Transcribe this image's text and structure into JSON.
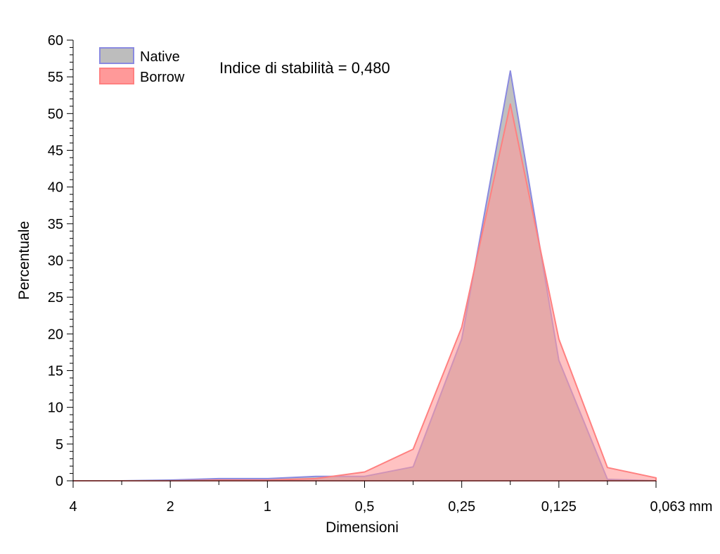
{
  "chart_data": {
    "type": "area",
    "xlabel": "Dimensioni",
    "ylabel": "Percentuale",
    "x_tick_labels": [
      "4",
      "2",
      "1",
      "0,5",
      "0,25",
      "0,125",
      "0,063 mm"
    ],
    "y_tick_labels": [
      "0",
      "5",
      "10",
      "15",
      "20",
      "25",
      "30",
      "35",
      "40",
      "45",
      "50",
      "55",
      "60"
    ],
    "ylim": [
      0,
      60
    ],
    "x_scale": "log2 (grain size, decreasing to the right)",
    "x_phi": [
      -2,
      -1.5,
      -1,
      -0.5,
      0,
      0.5,
      1,
      1.5,
      2,
      2.5,
      3,
      3.5,
      4
    ],
    "annotation": "Indice di stabilità = 0,480",
    "legend_position": "top-left",
    "series": [
      {
        "name": "Native",
        "fill": "#bdbdbd",
        "stroke": "#8a8ae0",
        "values": [
          0.0,
          0.0,
          0.1,
          0.3,
          0.3,
          0.6,
          0.6,
          1.9,
          19.3,
          55.8,
          16.4,
          0.2,
          0.0
        ]
      },
      {
        "name": "Borrow",
        "fill": "#ff9999",
        "stroke": "#ff8080",
        "values": [
          0.0,
          0.0,
          0.0,
          0.1,
          0.1,
          0.3,
          1.2,
          4.3,
          20.9,
          51.3,
          19.3,
          1.8,
          0.4
        ]
      }
    ]
  }
}
